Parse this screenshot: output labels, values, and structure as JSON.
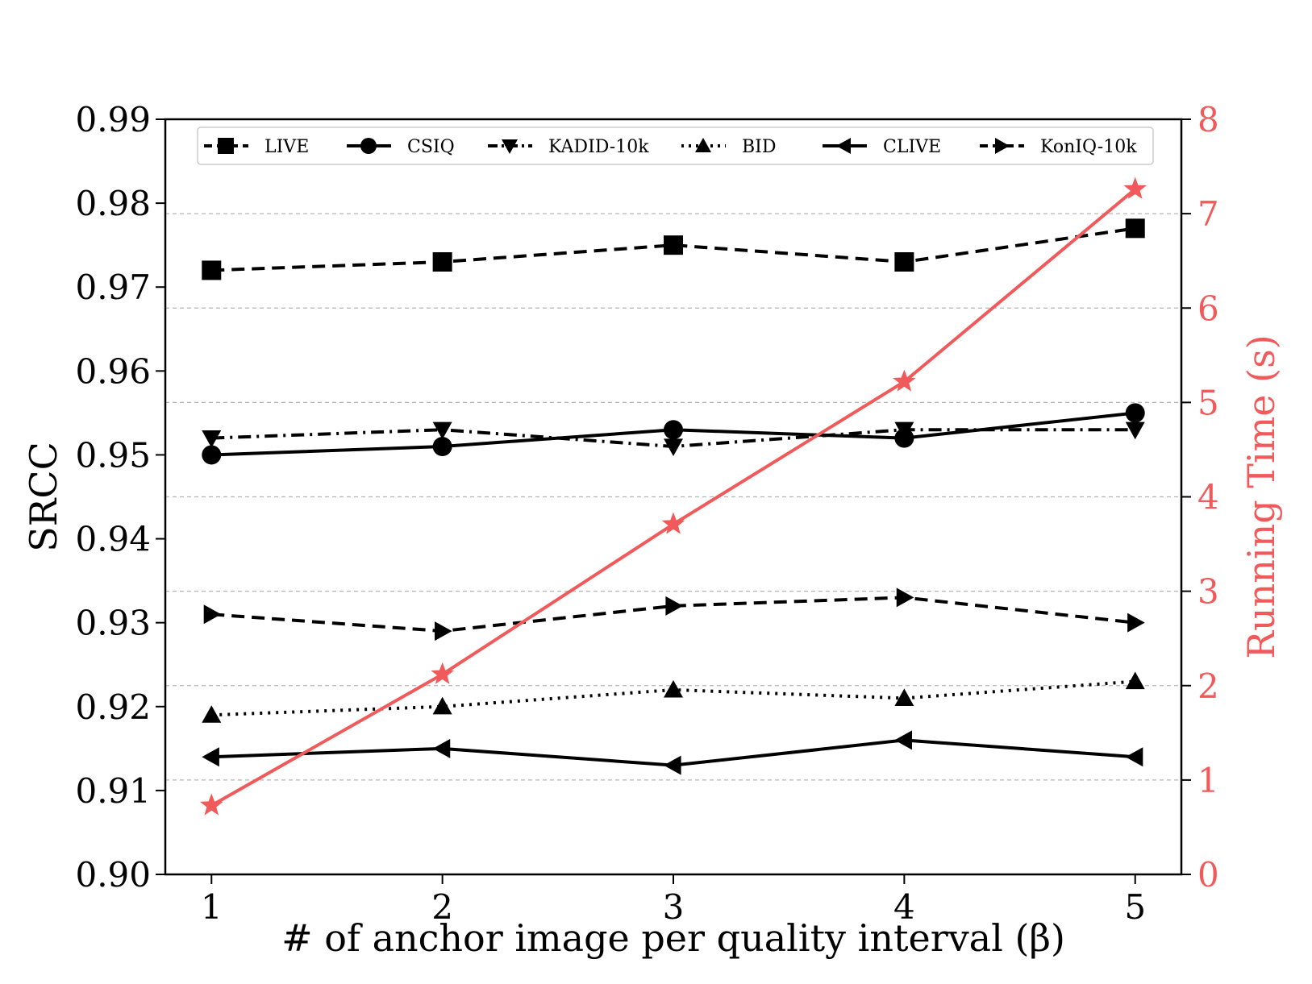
{
  "chart_data": {
    "type": "line",
    "xlabel": "# of anchor image per quality interval (β)",
    "ylabel": "SRCC",
    "y2label": "Running Time (s)",
    "x": [
      1,
      2,
      3,
      4,
      5
    ],
    "x_tick_labels": [
      "1",
      "2",
      "3",
      "4",
      "5"
    ],
    "xlim": [
      0.8,
      5.2
    ],
    "ylim": [
      0.9,
      0.99
    ],
    "y_tick_labels": [
      "0.90",
      "0.91",
      "0.92",
      "0.93",
      "0.94",
      "0.95",
      "0.96",
      "0.97",
      "0.98",
      "0.99"
    ],
    "y2lim": [
      0,
      8
    ],
    "y2_tick_labels": [
      "0",
      "1",
      "2",
      "3",
      "4",
      "5",
      "6",
      "7",
      "8"
    ],
    "grid": "dashed horizontal lines at right-axis ticks",
    "legend_placement": "top",
    "series": [
      {
        "name": "LIVE",
        "values": [
          0.972,
          0.973,
          0.975,
          0.973,
          0.977
        ],
        "marker": "square",
        "dash": "dashed",
        "color": "#000000"
      },
      {
        "name": "CSIQ",
        "values": [
          0.95,
          0.951,
          0.953,
          0.952,
          0.955
        ],
        "marker": "circle",
        "dash": "solid",
        "color": "#000000"
      },
      {
        "name": "KADID-10k",
        "values": [
          0.952,
          0.953,
          0.951,
          0.953,
          0.953
        ],
        "marker": "triangle-down",
        "dash": "dashdot",
        "color": "#000000"
      },
      {
        "name": "BID",
        "values": [
          0.919,
          0.92,
          0.922,
          0.921,
          0.923
        ],
        "marker": "triangle-up",
        "dash": "dotted",
        "color": "#000000"
      },
      {
        "name": "CLIVE",
        "values": [
          0.914,
          0.915,
          0.913,
          0.916,
          0.914
        ],
        "marker": "triangle-left",
        "dash": "solid",
        "color": "#000000"
      },
      {
        "name": "KonIQ-10k",
        "values": [
          0.931,
          0.929,
          0.932,
          0.933,
          0.93
        ],
        "marker": "triangle-right",
        "dash": "dashed",
        "color": "#000000"
      }
    ],
    "secondary_series": {
      "values": [
        0.73,
        2.12,
        3.71,
        5.22,
        7.26
      ],
      "marker": "star",
      "dash": "solid",
      "color": "#f05a5a"
    }
  }
}
